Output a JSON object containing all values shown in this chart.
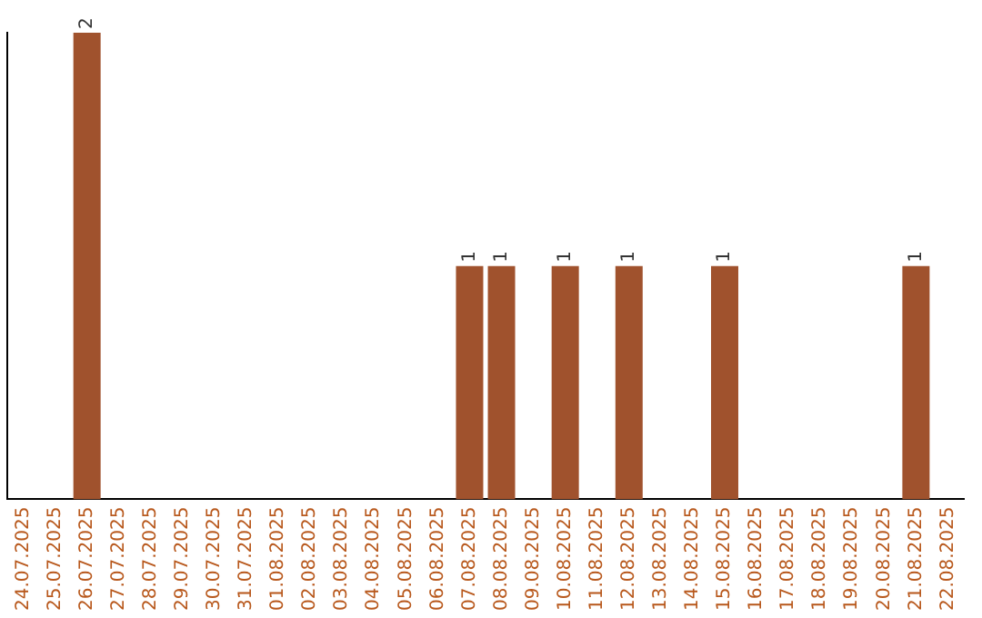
{
  "chart_data": {
    "type": "bar",
    "categories": [
      "24.07.2025",
      "25.07.2025",
      "26.07.2025",
      "27.07.2025",
      "28.07.2025",
      "29.07.2025",
      "30.07.2025",
      "31.07.2025",
      "01.08.2025",
      "02.08.2025",
      "03.08.2025",
      "04.08.2025",
      "05.08.2025",
      "06.08.2025",
      "07.08.2025",
      "08.08.2025",
      "09.08.2025",
      "10.08.2025",
      "11.08.2025",
      "12.08.2025",
      "13.08.2025",
      "14.08.2025",
      "15.08.2025",
      "16.08.2025",
      "17.08.2025",
      "18.08.2025",
      "19.08.2025",
      "20.08.2025",
      "21.08.2025",
      "22.08.2025"
    ],
    "values": [
      0,
      0,
      2,
      0,
      0,
      0,
      0,
      0,
      0,
      0,
      0,
      0,
      0,
      0,
      1,
      1,
      0,
      1,
      0,
      1,
      0,
      0,
      1,
      0,
      0,
      0,
      0,
      0,
      1,
      0
    ],
    "value_labels": [
      null,
      null,
      "2",
      null,
      null,
      null,
      null,
      null,
      null,
      null,
      null,
      null,
      null,
      null,
      "1",
      "1",
      null,
      "1",
      null,
      "1",
      null,
      null,
      "1",
      null,
      null,
      null,
      null,
      null,
      "1",
      null
    ],
    "color": "#a0522d",
    "grid": false,
    "legend": false,
    "tick_labels": "x"
  }
}
